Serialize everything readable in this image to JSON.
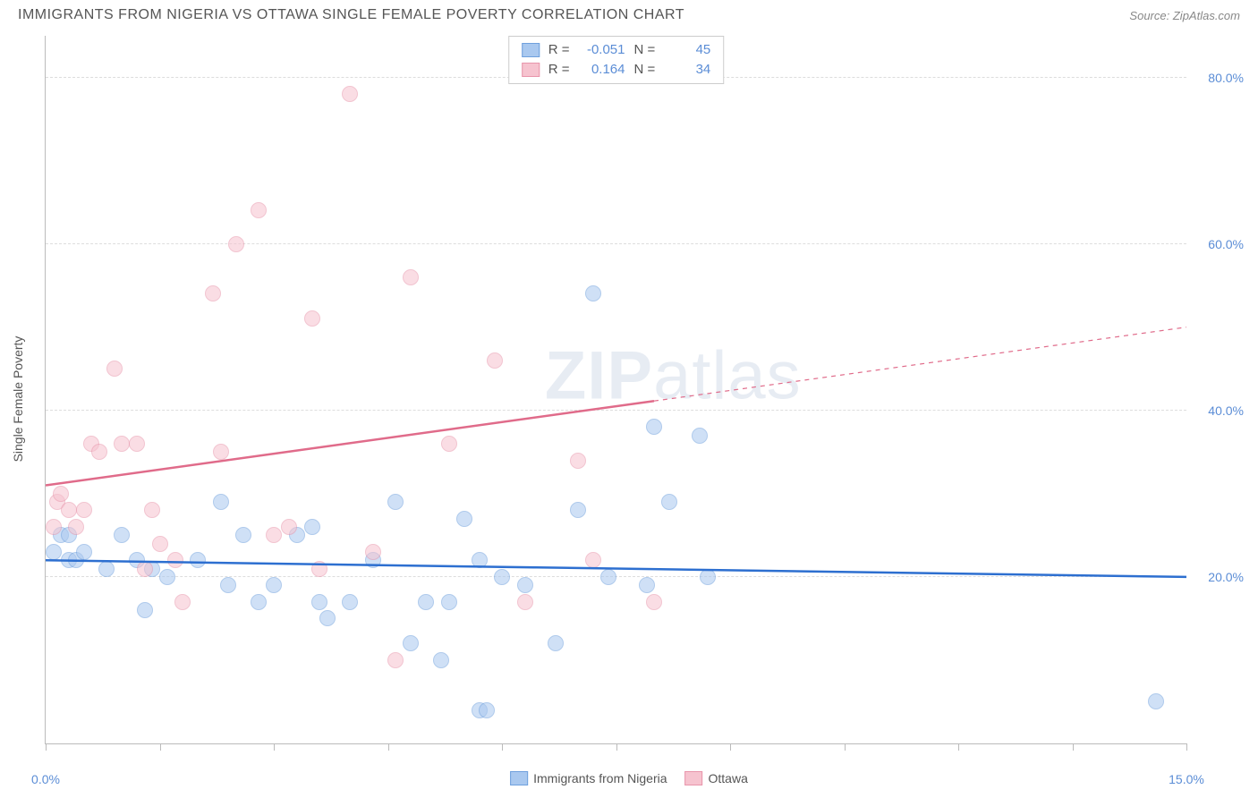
{
  "title": "IMMIGRANTS FROM NIGERIA VS OTTAWA SINGLE FEMALE POVERTY CORRELATION CHART",
  "source_label": "Source:",
  "source_name": "ZipAtlas.com",
  "y_axis_title": "Single Female Poverty",
  "watermark_a": "ZIP",
  "watermark_b": "atlas",
  "chart": {
    "type": "scatter",
    "background_color": "#ffffff",
    "grid_color": "#dddddd",
    "axis_color": "#bbbbbb",
    "tick_label_color": "#5b8dd6",
    "tick_label_fontsize": 14,
    "xlim": [
      0,
      15
    ],
    "ylim": [
      0,
      85
    ],
    "x_ticks": [
      0,
      1.5,
      3,
      4.5,
      6,
      7.5,
      9,
      10.5,
      12,
      13.5,
      15
    ],
    "x_tick_labels": {
      "0": "0.0%",
      "15": "15.0%"
    },
    "y_gridlines": [
      20,
      40,
      60,
      80
    ],
    "y_tick_labels": {
      "20": "20.0%",
      "40": "40.0%",
      "60": "60.0%",
      "80": "80.0%"
    },
    "marker_radius": 9,
    "marker_opacity": 0.55,
    "line_width_solid": 2.5,
    "line_width_dashed": 1.2,
    "series": [
      {
        "name": "Immigrants from Nigeria",
        "color_fill": "#a9c8ef",
        "color_stroke": "#6fa0dd",
        "trend_color": "#2d6fd0",
        "r_label": "R =",
        "r_value": "-0.051",
        "n_label": "N =",
        "n_value": "45",
        "trend_y_at_x0": 22.0,
        "trend_y_at_x15": 20.0,
        "trend_dash_from_x": 15,
        "points": [
          [
            0.1,
            23
          ],
          [
            0.2,
            25
          ],
          [
            0.3,
            22
          ],
          [
            0.4,
            22
          ],
          [
            0.5,
            23
          ],
          [
            0.8,
            21
          ],
          [
            1.0,
            25
          ],
          [
            1.2,
            22
          ],
          [
            1.3,
            16
          ],
          [
            1.4,
            21
          ],
          [
            1.6,
            20
          ],
          [
            2.0,
            22
          ],
          [
            2.3,
            29
          ],
          [
            2.4,
            19
          ],
          [
            2.6,
            25
          ],
          [
            2.8,
            17
          ],
          [
            3.0,
            19
          ],
          [
            3.3,
            25
          ],
          [
            3.5,
            26
          ],
          [
            3.6,
            17
          ],
          [
            3.7,
            15
          ],
          [
            4.0,
            17
          ],
          [
            4.3,
            22
          ],
          [
            4.6,
            29
          ],
          [
            4.8,
            12
          ],
          [
            5.0,
            17
          ],
          [
            5.2,
            10
          ],
          [
            5.3,
            17
          ],
          [
            5.5,
            27
          ],
          [
            5.7,
            22
          ],
          [
            5.7,
            4
          ],
          [
            5.8,
            4
          ],
          [
            6.0,
            20
          ],
          [
            6.3,
            19
          ],
          [
            6.7,
            12
          ],
          [
            7.0,
            28
          ],
          [
            7.2,
            54
          ],
          [
            7.4,
            20
          ],
          [
            7.9,
            19
          ],
          [
            8.0,
            38
          ],
          [
            8.2,
            29
          ],
          [
            8.6,
            37
          ],
          [
            8.7,
            20
          ],
          [
            14.6,
            5
          ],
          [
            0.3,
            25
          ]
        ]
      },
      {
        "name": "Ottawa",
        "color_fill": "#f6c3cf",
        "color_stroke": "#e895ab",
        "trend_color": "#e06b8a",
        "r_label": "R =",
        "r_value": "0.164",
        "n_label": "N =",
        "n_value": "34",
        "trend_y_at_x0": 31.0,
        "trend_y_at_x15": 50.0,
        "trend_dash_from_x": 8.0,
        "points": [
          [
            0.1,
            26
          ],
          [
            0.15,
            29
          ],
          [
            0.2,
            30
          ],
          [
            0.3,
            28
          ],
          [
            0.4,
            26
          ],
          [
            0.5,
            28
          ],
          [
            0.6,
            36
          ],
          [
            0.7,
            35
          ],
          [
            0.9,
            45
          ],
          [
            1.0,
            36
          ],
          [
            1.2,
            36
          ],
          [
            1.3,
            21
          ],
          [
            1.4,
            28
          ],
          [
            1.5,
            24
          ],
          [
            1.7,
            22
          ],
          [
            1.8,
            17
          ],
          [
            2.2,
            54
          ],
          [
            2.3,
            35
          ],
          [
            2.5,
            60
          ],
          [
            2.8,
            64
          ],
          [
            3.0,
            25
          ],
          [
            3.2,
            26
          ],
          [
            3.5,
            51
          ],
          [
            3.6,
            21
          ],
          [
            4.0,
            78
          ],
          [
            4.3,
            23
          ],
          [
            4.6,
            10
          ],
          [
            4.8,
            56
          ],
          [
            5.3,
            36
          ],
          [
            5.9,
            46
          ],
          [
            6.3,
            17
          ],
          [
            7.0,
            34
          ],
          [
            7.2,
            22
          ],
          [
            8.0,
            17
          ]
        ]
      }
    ]
  },
  "legend_bottom": [
    {
      "label": "Immigrants from Nigeria",
      "fill": "#a9c8ef",
      "stroke": "#6fa0dd"
    },
    {
      "label": "Ottawa",
      "fill": "#f6c3cf",
      "stroke": "#e895ab"
    }
  ]
}
